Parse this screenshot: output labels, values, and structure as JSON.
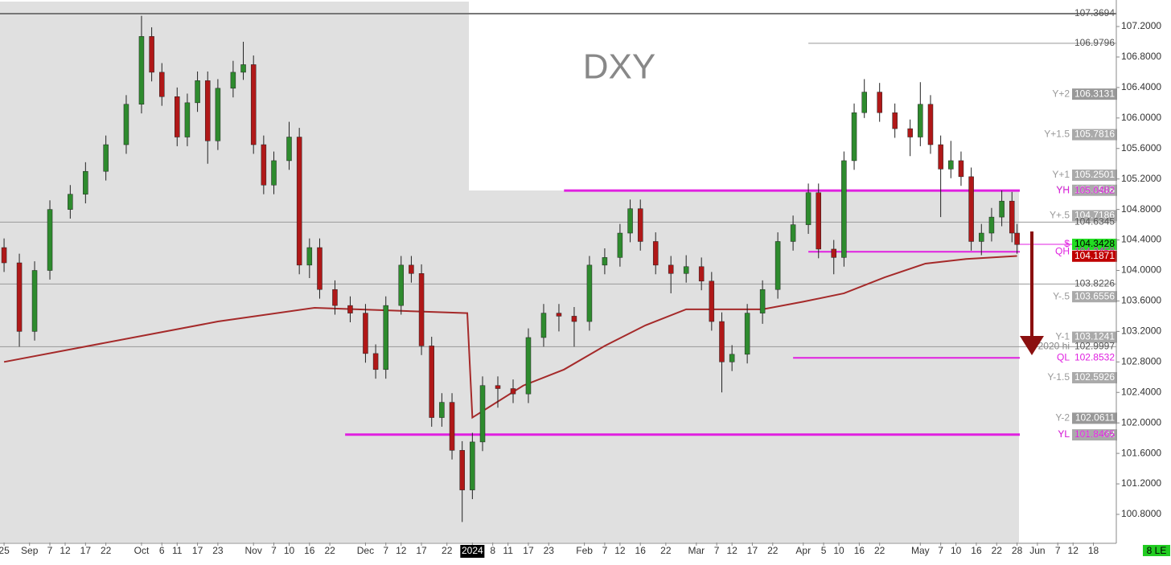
{
  "chart_data": {
    "type": "candlestick",
    "title": "DXY",
    "corner_tag": "8 LE",
    "xlim": [
      -0.8,
      218.5
    ],
    "ylim": [
      100.431,
      107.548
    ],
    "yticks": [
      {
        "value": 107.2,
        "label": "107.2000"
      },
      {
        "value": 106.8,
        "label": "106.8000"
      },
      {
        "value": 106.4,
        "label": "106.4000"
      },
      {
        "value": 106.0,
        "label": "106.0000"
      },
      {
        "value": 105.6,
        "label": "105.6000"
      },
      {
        "value": 105.2,
        "label": "105.2000"
      },
      {
        "value": 104.8,
        "label": "104.8000"
      },
      {
        "value": 104.4,
        "label": "104.4000"
      },
      {
        "value": 104.0,
        "label": "104.0000"
      },
      {
        "value": 103.6,
        "label": "103.6000"
      },
      {
        "value": 103.2,
        "label": "103.2000"
      },
      {
        "value": 102.8,
        "label": "102.8000"
      },
      {
        "value": 102.4,
        "label": "102.4000"
      },
      {
        "value": 102.0,
        "label": "102.0000"
      },
      {
        "value": 101.6,
        "label": "101.6000"
      },
      {
        "value": 101.2,
        "label": "101.2000"
      },
      {
        "value": 100.8,
        "label": "100.8000"
      }
    ],
    "xticks": [
      {
        "value": 0,
        "label": "25"
      },
      {
        "value": 5,
        "label": "Sep"
      },
      {
        "value": 9,
        "label": "7"
      },
      {
        "value": 12,
        "label": "12"
      },
      {
        "value": 16,
        "label": "17"
      },
      {
        "value": 20,
        "label": "22"
      },
      {
        "value": 27,
        "label": "Oct"
      },
      {
        "value": 31,
        "label": "6"
      },
      {
        "value": 34,
        "label": "11"
      },
      {
        "value": 38,
        "label": "17"
      },
      {
        "value": 42,
        "label": "23"
      },
      {
        "value": 49,
        "label": "Nov"
      },
      {
        "value": 53,
        "label": "7"
      },
      {
        "value": 56,
        "label": "10"
      },
      {
        "value": 60,
        "label": "16"
      },
      {
        "value": 64,
        "label": "22"
      },
      {
        "value": 71,
        "label": "Dec"
      },
      {
        "value": 75,
        "label": "7"
      },
      {
        "value": 78,
        "label": "12"
      },
      {
        "value": 82,
        "label": "17"
      },
      {
        "value": 87,
        "label": "22"
      },
      {
        "value": 92,
        "label": "2024",
        "highlight": true
      },
      {
        "value": 96,
        "label": "8"
      },
      {
        "value": 99,
        "label": "11"
      },
      {
        "value": 103,
        "label": "17"
      },
      {
        "value": 107,
        "label": "23"
      },
      {
        "value": 114,
        "label": "Feb"
      },
      {
        "value": 118,
        "label": "7"
      },
      {
        "value": 121,
        "label": "12"
      },
      {
        "value": 125,
        "label": "16"
      },
      {
        "value": 130,
        "label": "22"
      },
      {
        "value": 136,
        "label": "Mar"
      },
      {
        "value": 140,
        "label": "7"
      },
      {
        "value": 143,
        "label": "12"
      },
      {
        "value": 147,
        "label": "17"
      },
      {
        "value": 151,
        "label": "22"
      },
      {
        "value": 157,
        "label": "Apr"
      },
      {
        "value": 161,
        "label": "5"
      },
      {
        "value": 164,
        "label": "10"
      },
      {
        "value": 168,
        "label": "16"
      },
      {
        "value": 172,
        "label": "22"
      },
      {
        "value": 180,
        "label": "May"
      },
      {
        "value": 184,
        "label": "7"
      },
      {
        "value": 187,
        "label": "10"
      },
      {
        "value": 191,
        "label": "16"
      },
      {
        "value": 195,
        "label": "22"
      },
      {
        "value": 199,
        "label": "28"
      },
      {
        "value": 203,
        "label": "Jun"
      },
      {
        "value": 207,
        "label": "7"
      },
      {
        "value": 210,
        "label": "12"
      },
      {
        "value": 214,
        "label": "18"
      }
    ],
    "up_color": "#2e8b2e",
    "down_color": "#b01818",
    "ohlc": {
      "x": [
        0,
        3,
        6,
        9,
        13,
        16,
        20,
        24,
        27,
        29,
        31,
        34,
        36,
        38,
        40,
        42,
        45,
        47,
        49,
        51,
        53,
        56,
        58,
        60,
        62,
        65,
        68,
        71,
        73,
        75,
        78,
        80,
        82,
        84,
        86,
        88,
        90,
        92,
        94,
        97,
        100,
        103,
        106,
        109,
        112,
        115,
        118,
        121,
        123,
        125,
        128,
        131,
        134,
        137,
        139,
        141,
        143,
        146,
        149,
        152,
        155,
        158,
        160,
        163,
        165,
        167,
        169,
        172,
        175,
        178,
        180,
        182,
        184,
        186,
        188,
        190,
        192,
        194,
        196,
        198,
        199
      ],
      "open": [
        104.3,
        104.1,
        103.2,
        104.0,
        104.8,
        105.0,
        105.3,
        105.65,
        106.18,
        107.07,
        106.6,
        106.28,
        105.75,
        106.2,
        106.49,
        105.7,
        106.39,
        106.6,
        106.7,
        105.65,
        105.12,
        105.44,
        105.75,
        104.07,
        104.3,
        103.75,
        103.54,
        103.44,
        102.91,
        102.7,
        103.54,
        104.07,
        103.96,
        103.01,
        102.07,
        102.27,
        101.64,
        101.12,
        101.75,
        102.49,
        102.45,
        102.38,
        103.12,
        103.44,
        103.4,
        103.33,
        104.07,
        104.17,
        104.49,
        104.81,
        104.38,
        104.07,
        103.96,
        104.05,
        103.86,
        103.33,
        102.8,
        102.9,
        103.44,
        103.75,
        104.38,
        104.6,
        105.02,
        104.28,
        104.17,
        105.44,
        106.07,
        106.34,
        106.07,
        105.86,
        105.75,
        106.18,
        105.65,
        105.33,
        105.44,
        105.23,
        104.38,
        104.49,
        104.7,
        104.91,
        104.49
      ],
      "high": [
        104.42,
        104.22,
        104.12,
        104.92,
        105.12,
        105.42,
        105.77,
        106.3,
        107.34,
        107.19,
        106.72,
        106.4,
        106.32,
        106.61,
        106.61,
        106.51,
        106.75,
        107.0,
        106.82,
        105.77,
        105.56,
        105.95,
        105.87,
        104.42,
        104.42,
        103.87,
        103.66,
        103.56,
        103.03,
        103.66,
        104.19,
        104.19,
        104.08,
        103.13,
        102.39,
        102.39,
        101.76,
        101.87,
        102.61,
        102.61,
        102.57,
        103.24,
        103.56,
        103.56,
        103.52,
        104.19,
        104.29,
        104.61,
        104.93,
        104.93,
        104.5,
        104.19,
        104.2,
        104.17,
        103.98,
        103.45,
        103.02,
        103.56,
        103.87,
        104.5,
        104.72,
        105.14,
        105.14,
        104.4,
        105.56,
        106.19,
        106.51,
        106.46,
        106.19,
        105.98,
        106.47,
        106.3,
        105.77,
        105.7,
        105.56,
        105.35,
        104.61,
        104.82,
        105.05,
        105.03,
        104.61
      ],
      "low": [
        103.98,
        103.0,
        103.08,
        103.88,
        104.68,
        104.88,
        105.18,
        105.53,
        106.06,
        106.48,
        106.16,
        105.63,
        105.63,
        106.08,
        105.4,
        105.58,
        106.27,
        106.5,
        105.53,
        105.0,
        105.0,
        105.32,
        103.95,
        103.9,
        103.63,
        103.42,
        103.32,
        102.79,
        102.58,
        102.58,
        103.42,
        103.84,
        102.89,
        101.95,
        101.95,
        101.52,
        100.7,
        101.0,
        101.63,
        102.2,
        102.26,
        102.26,
        103.0,
        103.2,
        103.0,
        103.21,
        103.95,
        104.05,
        104.37,
        104.26,
        103.95,
        103.7,
        103.84,
        103.74,
        103.21,
        102.4,
        102.68,
        102.78,
        103.3,
        103.63,
        104.26,
        104.48,
        104.16,
        103.95,
        104.05,
        105.32,
        106.0,
        105.95,
        105.74,
        105.5,
        105.63,
        105.53,
        104.7,
        105.21,
        105.11,
        104.26,
        104.2,
        104.38,
        104.58,
        104.37,
        104.22
      ],
      "close": [
        104.1,
        103.2,
        104.0,
        104.8,
        105.0,
        105.3,
        105.65,
        106.18,
        107.07,
        106.6,
        106.28,
        105.75,
        106.2,
        106.49,
        105.7,
        106.39,
        106.6,
        106.7,
        105.65,
        105.12,
        105.44,
        105.75,
        104.07,
        104.3,
        103.75,
        103.54,
        103.44,
        102.91,
        102.7,
        103.54,
        104.07,
        103.96,
        103.01,
        102.07,
        102.27,
        101.64,
        101.12,
        101.75,
        102.49,
        102.45,
        102.38,
        103.12,
        103.44,
        103.4,
        103.33,
        104.07,
        104.17,
        104.49,
        104.81,
        104.38,
        104.07,
        103.96,
        104.05,
        103.86,
        103.33,
        102.8,
        102.9,
        103.44,
        103.75,
        104.38,
        104.6,
        105.02,
        104.28,
        104.17,
        105.44,
        106.07,
        106.34,
        106.07,
        105.86,
        105.75,
        106.18,
        105.65,
        105.33,
        105.44,
        105.23,
        104.38,
        104.49,
        104.7,
        104.91,
        104.49,
        104.34
      ]
    },
    "ma": {
      "color": "#a52a2a",
      "x": [
        0,
        42,
        61,
        91,
        92,
        102,
        110,
        118,
        126,
        134,
        141,
        149,
        157,
        165,
        173,
        181,
        189,
        199
      ],
      "values": [
        102.8,
        103.33,
        103.51,
        103.44,
        102.07,
        102.49,
        102.7,
        103.01,
        103.28,
        103.49,
        103.49,
        103.49,
        103.59,
        103.7,
        103.91,
        104.09,
        104.15,
        104.19
      ]
    },
    "levels": [
      {
        "value": 107.3694,
        "color": "#777777",
        "from": -0.8,
        "style": "plain"
      },
      {
        "value": 106.9796,
        "color": "#999999",
        "from": 158,
        "style": "plain"
      },
      {
        "label": "Y+2",
        "value": 106.3131,
        "color": "#999999",
        "style": "box"
      },
      {
        "label": "Y+1.5",
        "value": 105.7816,
        "color": "#aaaaaa",
        "style": "box"
      },
      {
        "label": "Y+1",
        "value": 105.2501,
        "color": "#aaaaaa",
        "style": "box"
      },
      {
        "label": "YH",
        "value": 105.0518,
        "color": "#aaaaaa",
        "style": "box"
      },
      {
        "label": "YH",
        "value": 105.0482,
        "color": "#e020e0",
        "from": 110,
        "style": "line"
      },
      {
        "label": "Y+.5",
        "value": 104.7186,
        "color": "#aaaaaa",
        "style": "box"
      },
      {
        "value": 104.6345,
        "color": "#999999",
        "from": -0.8,
        "style": "plain"
      },
      {
        "label": "$",
        "value": 104.3428,
        "color": "#22dd22",
        "text_color": "#000000",
        "line_color": "#e020e0",
        "from": 199,
        "style": "box"
      },
      {
        "label": "QH",
        "value": 104.2458,
        "color": "#e020e0",
        "from": 158,
        "style": "line"
      },
      {
        "value": 104.1871,
        "color": "#c00000",
        "style": "box"
      },
      {
        "value": 103.8226,
        "color": "#999999",
        "from": -0.8,
        "style": "plain"
      },
      {
        "label": "Y-.5",
        "value": 103.6556,
        "color": "#aaaaaa",
        "style": "box"
      },
      {
        "label": "Y-1",
        "value": 103.1241,
        "color": "#aaaaaa",
        "style": "box"
      },
      {
        "label": "2020 hi",
        "value": 102.9997,
        "color": "#999999",
        "from": -0.8,
        "style": "plain"
      },
      {
        "label": "QL",
        "value": 102.8532,
        "color": "#e020e0",
        "from": 155,
        "style": "line"
      },
      {
        "label": "Y-1.5",
        "value": 102.5926,
        "color": "#aaaaaa",
        "style": "box"
      },
      {
        "label": "Y-2",
        "value": 102.0611,
        "color": "#999999",
        "style": "box"
      },
      {
        "label": "YL",
        "value": 101.8432,
        "color": "#aaaaaa",
        "style": "box"
      },
      {
        "label": "YL",
        "value": 101.8465,
        "color": "#e020e0",
        "from": 67,
        "style": "line"
      }
    ]
  }
}
